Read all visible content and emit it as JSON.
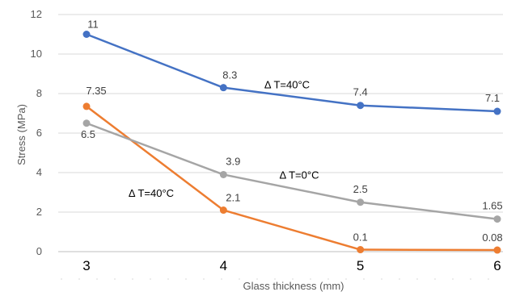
{
  "chart_data": {
    "type": "line",
    "xlabel": "Glass thickness (mm)",
    "ylabel": "Stress (MPa)",
    "x": [
      3,
      4,
      5,
      6
    ],
    "x_tick_labels": [
      "3",
      "4",
      "5",
      "6"
    ],
    "ylim": [
      0,
      12
    ],
    "y_ticks": [
      0,
      2,
      4,
      6,
      8,
      10,
      12
    ],
    "y_tick_labels": [
      "0",
      "2",
      "4",
      "6",
      "8",
      "10",
      "12"
    ],
    "grid": "horizontal",
    "legend": "none",
    "series": [
      {
        "values": [
          11,
          8.3,
          7.4,
          7.1
        ],
        "labels": [
          "11",
          "8.3",
          "7.4",
          "7.1"
        ],
        "color": "#4472C4"
      },
      {
        "values": [
          7.35,
          2.1,
          0.1,
          0.08
        ],
        "labels": [
          "7.35",
          "2.1",
          "0.1",
          "0.08"
        ],
        "color": "#ED7D31"
      },
      {
        "values": [
          6.5,
          3.9,
          2.5,
          1.65
        ],
        "labels": [
          "6.5",
          "3.9",
          "2.5",
          "1.65"
        ],
        "color": "#A5A5A5"
      }
    ],
    "annotations": [
      {
        "text": "Δ T=40°C",
        "series": 0
      },
      {
        "text": "Δ T=0°C",
        "series": 2
      },
      {
        "text": "Δ T=40°C",
        "series": 1
      }
    ]
  }
}
